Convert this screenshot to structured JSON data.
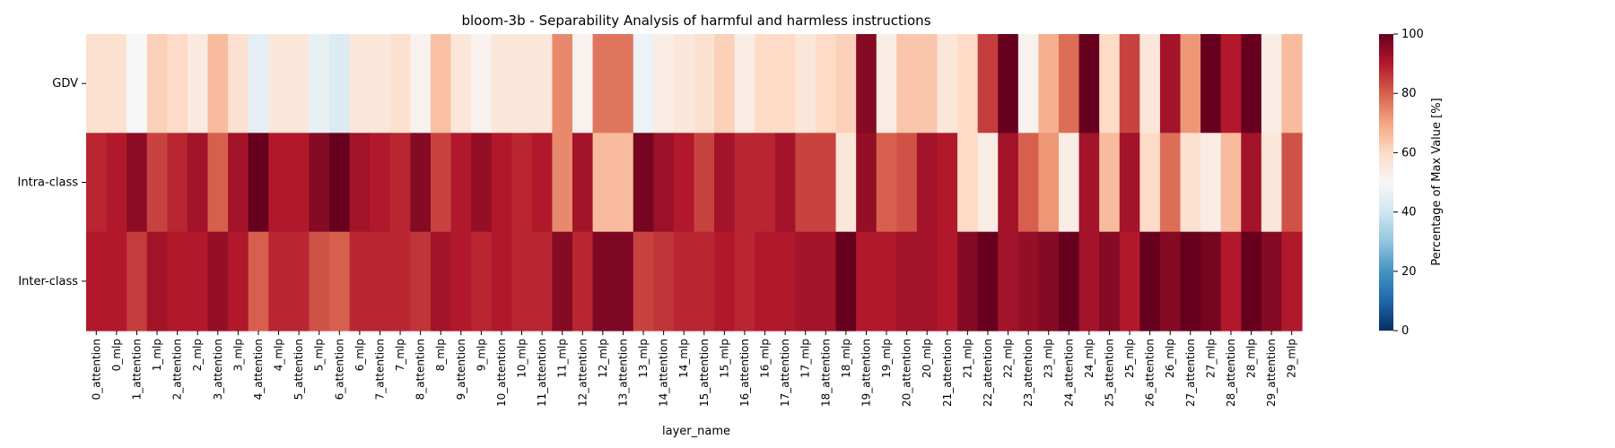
{
  "chart_data": {
    "type": "heatmap",
    "title": "bloom-3b - Separability Analysis of harmful and harmless instructions",
    "xlabel": "layer_name",
    "ylabel": "",
    "rows": [
      "GDV",
      "Intra-class",
      "Inter-class"
    ],
    "columns": [
      "0_attention",
      "0_mlp",
      "1_attention",
      "1_mlp",
      "2_attention",
      "2_mlp",
      "3_attention",
      "3_mlp",
      "4_attention",
      "4_mlp",
      "5_attention",
      "5_mlp",
      "6_attention",
      "6_mlp",
      "7_attention",
      "7_mlp",
      "8_attention",
      "8_mlp",
      "9_attention",
      "9_mlp",
      "10_attention",
      "10_mlp",
      "11_attention",
      "11_mlp",
      "12_attention",
      "12_mlp",
      "13_attention",
      "13_mlp",
      "14_attention",
      "14_mlp",
      "15_attention",
      "15_mlp",
      "16_attention",
      "16_mlp",
      "17_attention",
      "17_mlp",
      "18_attention",
      "18_mlp",
      "19_attention",
      "19_mlp",
      "20_attention",
      "20_mlp",
      "21_attention",
      "21_mlp",
      "22_attention",
      "22_mlp",
      "23_attention",
      "23_mlp",
      "24_attention",
      "24_mlp",
      "25_attention",
      "25_mlp",
      "26_attention",
      "26_mlp",
      "27_attention",
      "27_mlp",
      "28_attention",
      "28_mlp",
      "29_attention",
      "29_mlp"
    ],
    "tick_labels_shown": [
      "0_attention",
      "0_mlp",
      "1_attention",
      "1_mlp",
      "2_attention",
      "2_mlp",
      "3_attention",
      "3_mlp",
      "4_attention",
      "4_mlp",
      "5_attention",
      "5_mlp",
      "6_attention",
      "6_mlp",
      "7_attention",
      "7_mlp",
      "8_attention",
      "8_mlp",
      "9_attention",
      "9_mlp",
      "10_attention",
      "10_mlp",
      "11_attention",
      "11_mlp",
      "12_attention",
      "12_mlp",
      "13_attention",
      "13_mlp",
      "14_attention",
      "14_mlp",
      "15_attention",
      "15_mlp",
      "16_attention",
      "16_mlp",
      "17_attention",
      "17_mlp",
      "18_attention",
      "18_mlp",
      "19_attention",
      "19_mlp",
      "20_attention",
      "20_mlp",
      "21_attention",
      "21_mlp",
      "22_attention",
      "22_mlp",
      "23_attention",
      "23_mlp",
      "24_attention",
      "24_mlp",
      "25_attention",
      "25_mlp",
      "26_attention",
      "26_mlp",
      "27_attention",
      "27_mlp",
      "28_attention",
      "28_mlp",
      "29_attention",
      "29_mlp"
    ],
    "values": [
      [
        58,
        58,
        50,
        62,
        60,
        55,
        66,
        58,
        45,
        56,
        56,
        46,
        43,
        56,
        56,
        58,
        52,
        65,
        56,
        52,
        56,
        56,
        56,
        74,
        52,
        77,
        77,
        47,
        54,
        56,
        58,
        62,
        54,
        60,
        60,
        56,
        60,
        62,
        96,
        54,
        64,
        64,
        56,
        60,
        85,
        100,
        52,
        68,
        78,
        100,
        60,
        84,
        56,
        92,
        72,
        100,
        90,
        100,
        54,
        66
      ],
      [
        88,
        90,
        95,
        84,
        88,
        92,
        80,
        92,
        100,
        90,
        90,
        96,
        100,
        92,
        90,
        88,
        96,
        84,
        90,
        94,
        90,
        88,
        90,
        74,
        92,
        66,
        66,
        98,
        93,
        90,
        84,
        92,
        88,
        88,
        92,
        84,
        84,
        56,
        94,
        80,
        82,
        92,
        90,
        60,
        54,
        92,
        80,
        72,
        54,
        92,
        66,
        92,
        60,
        78,
        58,
        54,
        66,
        92,
        56,
        82
      ],
      [
        90,
        90,
        85,
        92,
        90,
        90,
        94,
        90,
        80,
        88,
        88,
        82,
        80,
        88,
        88,
        88,
        86,
        92,
        90,
        88,
        90,
        88,
        88,
        96,
        88,
        97,
        97,
        84,
        86,
        88,
        88,
        90,
        88,
        90,
        90,
        92,
        92,
        100,
        90,
        90,
        92,
        92,
        90,
        96,
        100,
        92,
        94,
        96,
        100,
        92,
        96,
        90,
        100,
        96,
        100,
        98,
        90,
        100,
        96,
        90
      ]
    ],
    "vmin": 0,
    "vmax": 100,
    "colormap": "RdBu_r",
    "colorbar": {
      "label": "Percentage of Max Value [%]",
      "ticks": [
        0,
        20,
        40,
        60,
        80,
        100
      ]
    },
    "grid": false
  }
}
